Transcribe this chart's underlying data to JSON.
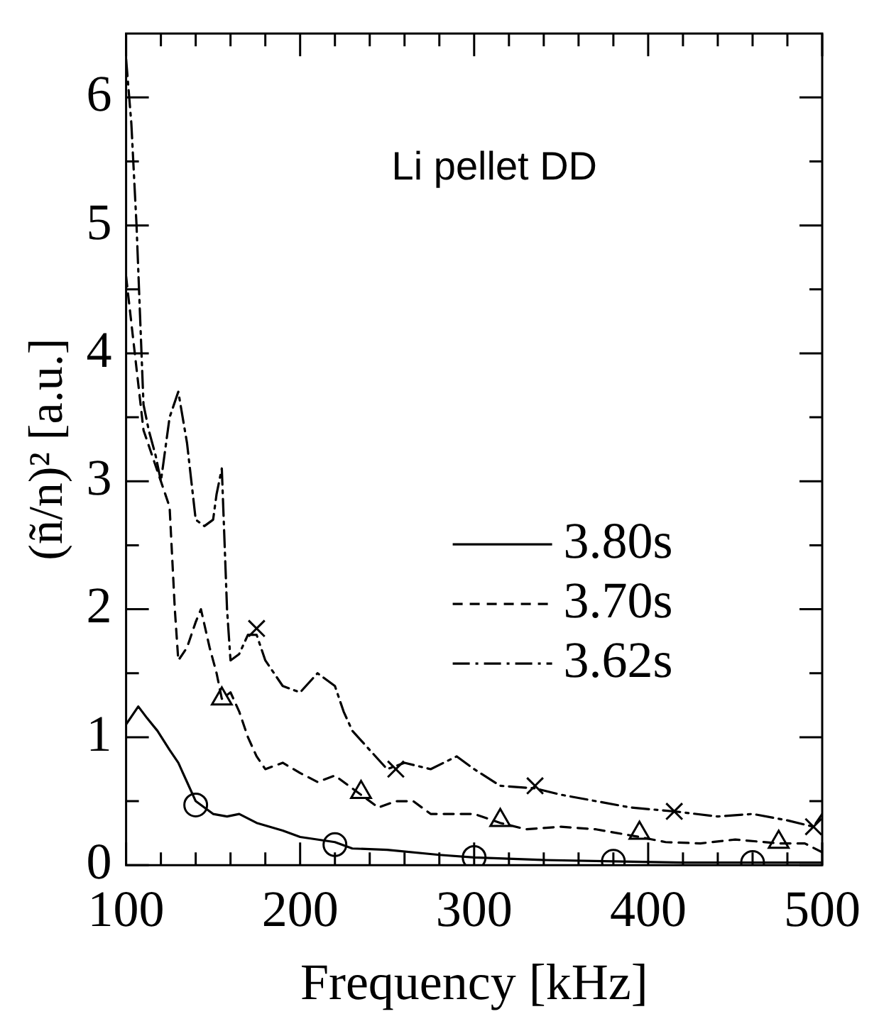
{
  "chart_data": {
    "type": "line",
    "xlabel": "Frequency [kHz]",
    "ylabel": "(ñ/n)² [a.u.]",
    "annotations": [
      "Li pellet DD"
    ],
    "legend": "right",
    "xlim": [
      100,
      500
    ],
    "ylim": [
      0,
      6.5
    ],
    "xticks": [
      100,
      {
        "value": 120,
        "label": null
      },
      {
        "value": 140,
        "label": null
      },
      {
        "value": 160,
        "label": null
      },
      {
        "value": 180,
        "label": null
      },
      200,
      {
        "value": 220,
        "label": null
      },
      {
        "value": 240,
        "label": null
      },
      {
        "value": 260,
        "label": null
      },
      {
        "value": 280,
        "label": null
      },
      300,
      {
        "value": 320,
        "label": null
      },
      {
        "value": 340,
        "label": null
      },
      {
        "value": 360,
        "label": null
      },
      {
        "value": 380,
        "label": null
      },
      400,
      {
        "value": 420,
        "label": null
      },
      {
        "value": 440,
        "label": null
      },
      {
        "value": 460,
        "label": null
      },
      {
        "value": 480,
        "label": null
      },
      500
    ],
    "yticks": [
      0,
      {
        "value": 0.5,
        "label": null
      },
      1,
      {
        "value": 1.5,
        "label": null
      },
      2,
      {
        "value": 2.5,
        "label": null
      },
      3,
      {
        "value": 3.5,
        "label": null
      },
      4,
      {
        "value": 4.5,
        "label": null
      },
      5,
      {
        "value": 5.5,
        "label": null
      },
      6
    ],
    "series": [
      {
        "name": "3.80s",
        "color": "#000000",
        "line_style": "solid",
        "x": [
          100,
          107,
          112,
          118,
          125,
          130,
          135,
          140,
          145,
          150,
          158,
          165,
          175,
          190,
          200,
          220,
          230,
          250,
          280,
          300,
          340,
          380,
          420,
          460,
          500
        ],
        "values": [
          1.1,
          1.24,
          1.15,
          1.05,
          0.9,
          0.8,
          0.65,
          0.5,
          0.45,
          0.4,
          0.38,
          0.4,
          0.33,
          0.27,
          0.22,
          0.18,
          0.13,
          0.12,
          0.08,
          0.06,
          0.04,
          0.03,
          0.02,
          0.02,
          0.02
        ]
      },
      {
        "name": "3.70s",
        "color": "#000000",
        "line_style": "dashed",
        "x": [
          100,
          105,
          110,
          115,
          120,
          125,
          128,
          130,
          135,
          140,
          143,
          148,
          152,
          155,
          160,
          165,
          170,
          175,
          180,
          190,
          200,
          210,
          220,
          230,
          235,
          245,
          255,
          265,
          275,
          290,
          300,
          315,
          330,
          350,
          370,
          395,
          410,
          430,
          450,
          475,
          490,
          500
        ],
        "values": [
          4.6,
          4.0,
          3.4,
          3.2,
          3.0,
          2.8,
          2.0,
          1.6,
          1.7,
          1.9,
          2.0,
          1.7,
          1.5,
          1.3,
          1.35,
          1.2,
          1.0,
          0.85,
          0.75,
          0.8,
          0.72,
          0.65,
          0.7,
          0.6,
          0.55,
          0.45,
          0.5,
          0.5,
          0.4,
          0.4,
          0.4,
          0.33,
          0.28,
          0.3,
          0.28,
          0.22,
          0.18,
          0.17,
          0.2,
          0.17,
          0.17,
          0.1
        ]
      },
      {
        "name": "3.62s",
        "color": "#000000",
        "line_style": "dashdot",
        "x": [
          100,
          103,
          106,
          108,
          110,
          113,
          117,
          120,
          125,
          130,
          135,
          140,
          145,
          150,
          152,
          155,
          158,
          160,
          165,
          170,
          175,
          180,
          190,
          200,
          210,
          220,
          225,
          230,
          240,
          250,
          260,
          275,
          290,
          300,
          315,
          335,
          350,
          370,
          390,
          415,
          440,
          460,
          480,
          495,
          500
        ],
        "values": [
          6.3,
          5.8,
          5.0,
          4.3,
          3.6,
          3.4,
          3.2,
          3.0,
          3.5,
          3.7,
          3.3,
          2.7,
          2.65,
          2.7,
          2.9,
          3.1,
          2.0,
          1.6,
          1.65,
          1.8,
          1.8,
          1.6,
          1.4,
          1.35,
          1.5,
          1.4,
          1.2,
          1.05,
          0.9,
          0.75,
          0.8,
          0.75,
          0.85,
          0.75,
          0.62,
          0.6,
          0.55,
          0.5,
          0.45,
          0.42,
          0.38,
          0.4,
          0.35,
          0.3,
          0.4
        ]
      },
      {
        "type": "scatter",
        "marker": "circle",
        "color": "#000000",
        "x": [
          140,
          220,
          300,
          380,
          460
        ],
        "values": [
          0.47,
          0.16,
          0.06,
          0.03,
          0.02
        ]
      },
      {
        "type": "scatter",
        "marker": "triangle",
        "color": "#000000",
        "x": [
          155,
          235,
          315,
          395,
          475
        ],
        "values": [
          1.3,
          0.57,
          0.35,
          0.25,
          0.18
        ]
      },
      {
        "type": "scatter",
        "marker": "cross",
        "color": "#000000",
        "x": [
          175,
          255,
          335,
          415,
          495
        ],
        "values": [
          1.85,
          0.75,
          0.62,
          0.42,
          0.3
        ]
      }
    ]
  }
}
